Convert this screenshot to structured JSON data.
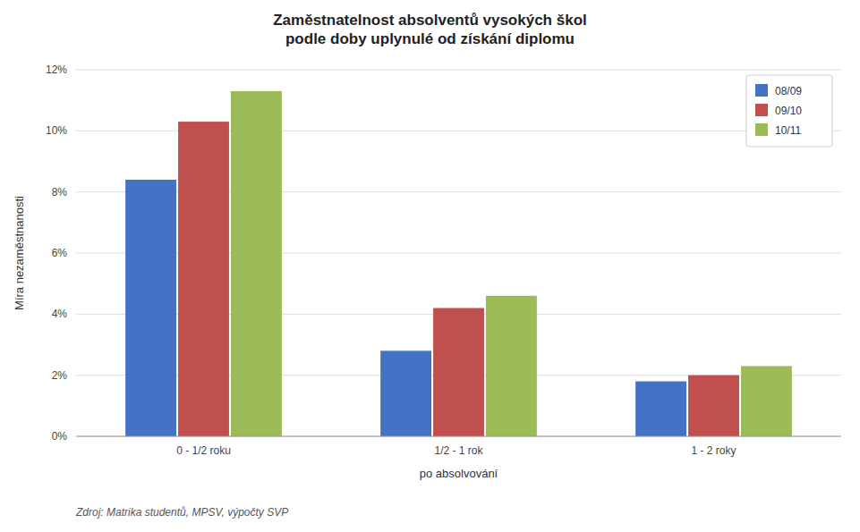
{
  "chart_data": {
    "type": "bar",
    "title": "Zaměstnatelnost absolventů vysokých škol\npodle doby uplynulé od získání diplomu",
    "x_label": "po absolvování",
    "y_label": "Míra nezaměstnanosti",
    "source": "Zdroj: Matrika studentů, MPSV, výpočty SVP",
    "categories": [
      "0 - 1/2 roku",
      "1/2 - 1 rok",
      "1 - 2 roky"
    ],
    "series": [
      {
        "name": "08/09",
        "color": "#4472C4",
        "values": [
          0.084,
          0.028,
          0.018
        ]
      },
      {
        "name": "09/10",
        "color": "#C0504D",
        "values": [
          0.103,
          0.042,
          0.02
        ]
      },
      {
        "name": "10/11",
        "color": "#9BBB59",
        "values": [
          0.113,
          0.046,
          0.023
        ]
      }
    ],
    "ylim": [
      0,
      0.12
    ],
    "yticks": [
      {
        "value": 0,
        "label": "0%"
      },
      {
        "value": 0.02,
        "label": "2%"
      },
      {
        "value": 0.04,
        "label": "4%"
      },
      {
        "value": 0.06,
        "label": "6%"
      },
      {
        "value": 0.08,
        "label": "8%"
      },
      {
        "value": 0.1,
        "label": "10%"
      },
      {
        "value": 0.12,
        "label": "12%"
      }
    ],
    "grid": true,
    "legend": "upper right"
  }
}
